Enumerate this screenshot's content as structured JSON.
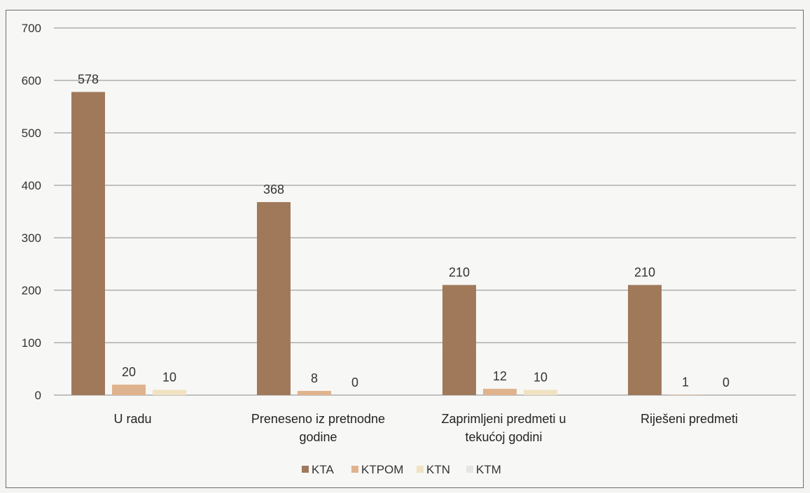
{
  "chart_data": {
    "type": "bar",
    "title": "",
    "xlabel": "",
    "ylabel": "",
    "ylim": [
      0,
      700
    ],
    "yticks": [
      0,
      100,
      200,
      300,
      400,
      500,
      600,
      700
    ],
    "grid": true,
    "legend_position": "bottom",
    "categories": [
      [
        "U radu"
      ],
      [
        "Preneseno iz pretnodne",
        "godine"
      ],
      [
        "Zaprimljeni predmeti u",
        "tekućoj godini"
      ],
      [
        "Riješeni predmeti"
      ]
    ],
    "series": [
      {
        "name": "KTA",
        "color": "#a0795b",
        "values": [
          578,
          368,
          210,
          210
        ],
        "labels": [
          "578",
          "368",
          "210",
          "210"
        ]
      },
      {
        "name": "KTPOM",
        "color": "#dfb38e",
        "values": [
          20,
          8,
          12,
          1
        ],
        "labels": [
          "20",
          "8",
          "12",
          "1"
        ]
      },
      {
        "name": "KTN",
        "color": "#f0e2c2",
        "values": [
          10,
          0,
          10,
          0
        ],
        "labels": [
          "10",
          "0",
          "10",
          "0"
        ]
      },
      {
        "name": "KTM",
        "color": "#e6e6e2",
        "values": [
          0,
          0,
          0,
          0
        ],
        "labels": [
          "",
          "",
          "",
          ""
        ]
      }
    ]
  }
}
